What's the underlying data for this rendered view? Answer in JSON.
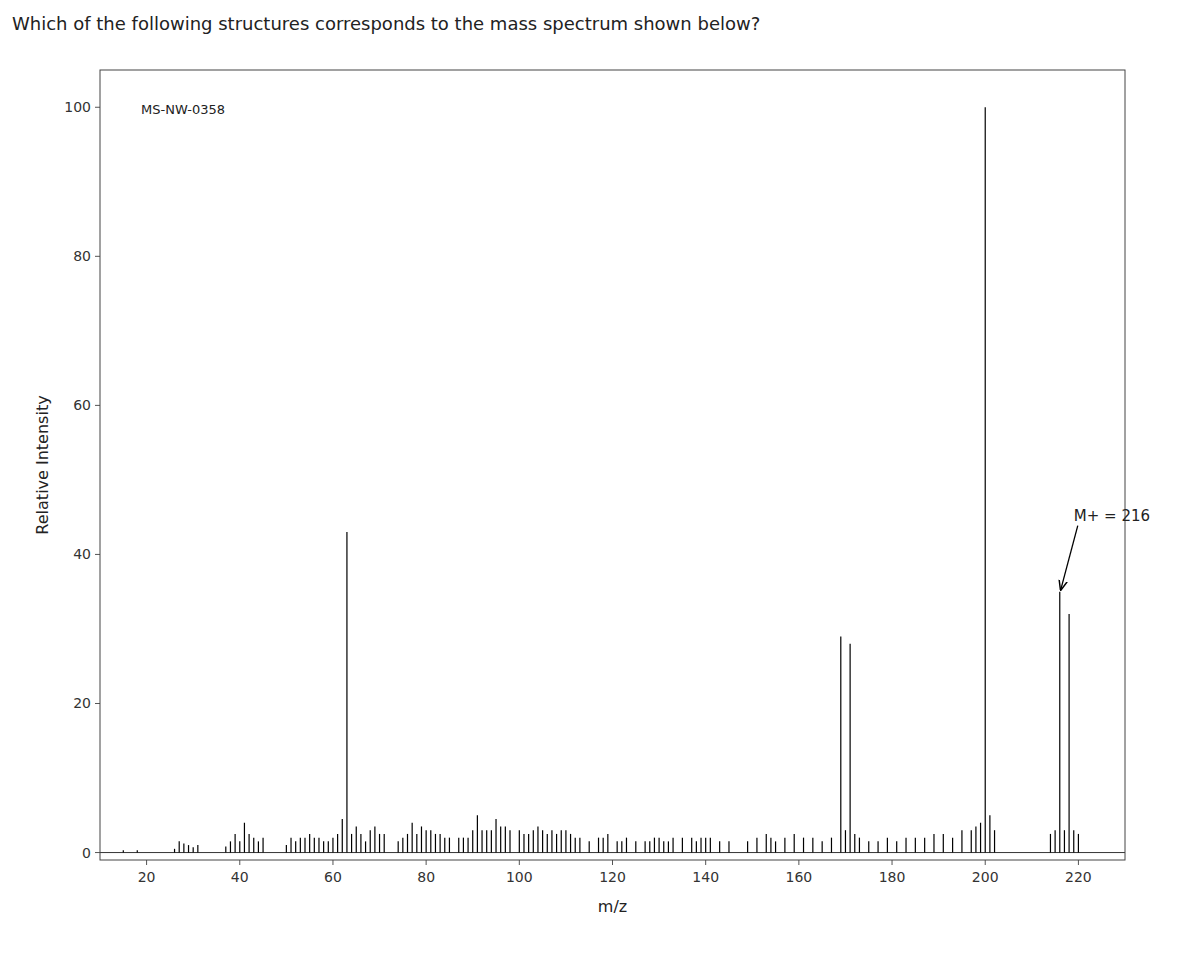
{
  "chart_data": {
    "type": "stem",
    "title": "Which of the following structures corresponds to the mass spectrum shown below?",
    "x_label": "m/z",
    "y_label": "Relative Intensity",
    "color": "#000000",
    "grid": false,
    "xlim": [
      10,
      230
    ],
    "ylim": [
      -1,
      105
    ],
    "xticks": [
      20,
      40,
      60,
      80,
      100,
      120,
      140,
      160,
      180,
      200,
      220
    ],
    "yticks": [
      0,
      20,
      40,
      60,
      80,
      100
    ],
    "annotations": [
      {
        "text": "MS-NW-0358"
      },
      {
        "text": "M+ = 216",
        "x": 216,
        "y": 35
      }
    ],
    "x": [
      15,
      18,
      26,
      27,
      28,
      29,
      30,
      31,
      37,
      38,
      39,
      40,
      41,
      42,
      43,
      44,
      45,
      50,
      51,
      52,
      53,
      54,
      55,
      56,
      57,
      58,
      59,
      60,
      61,
      62,
      63,
      64,
      65,
      66,
      67,
      68,
      69,
      70,
      71,
      74,
      75,
      76,
      77,
      78,
      79,
      80,
      81,
      82,
      83,
      84,
      85,
      87,
      88,
      89,
      90,
      91,
      92,
      93,
      94,
      95,
      96,
      97,
      98,
      100,
      101,
      102,
      103,
      104,
      105,
      106,
      107,
      108,
      109,
      110,
      111,
      112,
      113,
      115,
      117,
      118,
      119,
      121,
      122,
      123,
      125,
      127,
      128,
      129,
      130,
      131,
      132,
      133,
      135,
      137,
      138,
      139,
      140,
      141,
      143,
      145,
      149,
      151,
      153,
      154,
      155,
      157,
      159,
      161,
      163,
      165,
      167,
      169,
      170,
      171,
      172,
      173,
      175,
      177,
      179,
      181,
      183,
      185,
      187,
      189,
      191,
      193,
      195,
      197,
      198,
      199,
      200,
      201,
      202,
      214,
      215,
      216,
      217,
      218,
      219,
      220
    ],
    "values": [
      0.3,
      0.3,
      0.5,
      1.5,
      1.2,
      1.0,
      0.7,
      1.0,
      0.8,
      1.5,
      2.5,
      1.5,
      4.0,
      2.5,
      2.0,
      1.5,
      2.0,
      1.0,
      2.0,
      1.5,
      2.0,
      2.0,
      2.5,
      2.0,
      2.0,
      1.5,
      1.5,
      2.0,
      2.5,
      4.5,
      43.0,
      2.5,
      3.5,
      2.5,
      1.5,
      3.0,
      3.5,
      2.5,
      2.5,
      1.5,
      2.0,
      2.5,
      4.0,
      2.5,
      3.5,
      3.0,
      3.0,
      2.5,
      2.5,
      2.0,
      2.0,
      2.0,
      2.0,
      2.0,
      3.0,
      5.0,
      3.0,
      3.0,
      3.0,
      4.5,
      3.5,
      3.5,
      3.0,
      3.0,
      2.5,
      2.5,
      3.0,
      3.5,
      3.0,
      2.5,
      3.0,
      2.5,
      3.0,
      3.0,
      2.5,
      2.0,
      2.0,
      1.5,
      2.0,
      2.0,
      2.5,
      1.5,
      1.5,
      2.0,
      1.5,
      1.5,
      1.5,
      2.0,
      2.0,
      1.5,
      1.5,
      2.0,
      2.0,
      2.0,
      1.5,
      2.0,
      2.0,
      2.0,
      1.5,
      1.5,
      1.5,
      2.0,
      2.5,
      2.0,
      1.5,
      2.0,
      2.5,
      2.0,
      2.0,
      1.5,
      2.0,
      29.0,
      3.0,
      28.0,
      2.5,
      2.0,
      1.5,
      1.5,
      2.0,
      1.5,
      2.0,
      2.0,
      2.0,
      2.5,
      2.5,
      2.0,
      3.0,
      3.0,
      3.5,
      4.0,
      100.0,
      5.0,
      3.0,
      2.5,
      3.0,
      35.0,
      3.0,
      32.0,
      3.0,
      2.5
    ]
  }
}
